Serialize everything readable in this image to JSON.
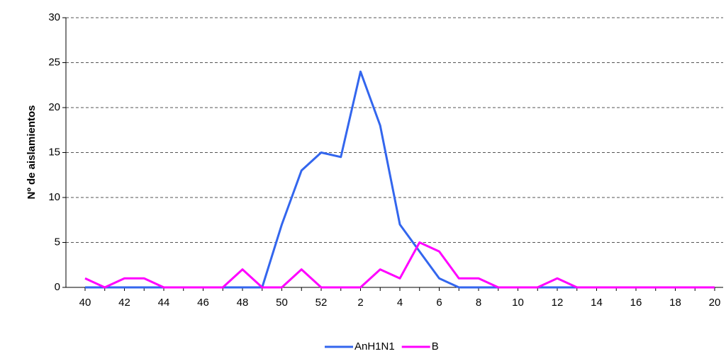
{
  "chart_data": {
    "type": "line",
    "y_label": "Nº de aislamientos",
    "categories": [
      40,
      null,
      42,
      null,
      44,
      null,
      46,
      null,
      48,
      null,
      50,
      null,
      52,
      null,
      2,
      null,
      4,
      null,
      6,
      null,
      8,
      null,
      10,
      null,
      12,
      null,
      14,
      null,
      16,
      null,
      18,
      null,
      20
    ],
    "series": [
      {
        "name": "AnH1N1",
        "color": "#3366ee",
        "values": [
          0,
          0,
          0,
          0,
          0,
          0,
          0,
          0,
          0,
          0,
          7,
          13,
          15,
          14.5,
          24,
          18,
          7,
          4,
          1,
          0,
          0,
          0,
          0,
          0,
          0,
          0,
          0,
          0,
          0,
          0,
          0,
          0,
          0
        ]
      },
      {
        "name": "B",
        "color": "#ff00ff",
        "values": [
          1,
          0,
          1,
          1,
          0,
          0,
          0,
          0,
          2,
          0,
          0,
          2,
          0,
          0,
          0,
          2,
          1,
          5,
          4,
          1,
          1,
          0,
          0,
          0,
          1,
          0,
          0,
          0,
          0,
          0,
          0,
          0,
          0
        ]
      }
    ],
    "ylim": [
      0,
      30
    ],
    "yticks": [
      0,
      5,
      10,
      15,
      20,
      25,
      30
    ],
    "grid": true,
    "legend": "bottom"
  }
}
